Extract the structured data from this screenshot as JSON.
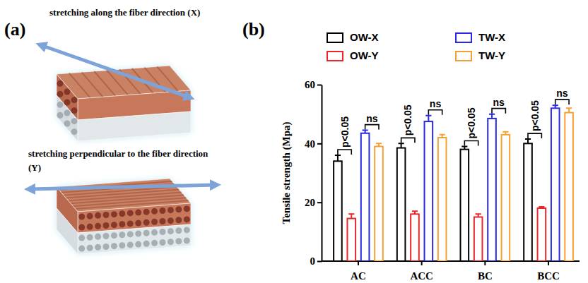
{
  "panel_labels": [
    "(a)",
    "(b)"
  ],
  "diagram": {
    "captions": [
      "stretching along the fiber direction (X)",
      "stretching perpendicular to the fiber direction (Y)"
    ]
  },
  "chart_data": {
    "type": "bar",
    "y_label": "Tensile strength (Mpa)",
    "categories": [
      "AC",
      "ACC",
      "BC",
      "BCC"
    ],
    "series": [
      {
        "name": "OW-X",
        "color": "#000000",
        "values": [
          34,
          38.5,
          38,
          40
        ],
        "errors": [
          2,
          1.5,
          1,
          1.5
        ]
      },
      {
        "name": "OW-Y",
        "color": "#e8262b",
        "values": [
          14.5,
          16,
          15,
          18
        ],
        "errors": [
          1.5,
          1,
          1,
          0.5
        ]
      },
      {
        "name": "TW-X",
        "color": "#2a2ae6",
        "values": [
          43.5,
          47.5,
          48.5,
          52
        ],
        "errors": [
          1,
          2,
          1.5,
          1
        ]
      },
      {
        "name": "TW-Y",
        "color": "#f5a030",
        "values": [
          39,
          42,
          43,
          50.5
        ],
        "errors": [
          1,
          1,
          1,
          1.5
        ]
      }
    ],
    "ylim": [
      0,
      60
    ],
    "yticks": [
      0,
      20,
      40,
      60
    ],
    "legend": "top",
    "annotations": [
      {
        "text": "p<0.05",
        "category": "AC",
        "series": [
          "OW-X",
          "OW-Y"
        ]
      },
      {
        "text": "ns",
        "category": "AC",
        "series": [
          "TW-X",
          "TW-Y"
        ]
      },
      {
        "text": "p<0.05",
        "category": "ACC",
        "series": [
          "OW-X",
          "OW-Y"
        ]
      },
      {
        "text": "ns",
        "category": "ACC",
        "series": [
          "TW-X",
          "TW-Y"
        ]
      },
      {
        "text": "p<0.05",
        "category": "BC",
        "series": [
          "OW-X",
          "OW-Y"
        ]
      },
      {
        "text": "ns",
        "category": "BC",
        "series": [
          "TW-X",
          "TW-Y"
        ]
      },
      {
        "text": "p<0.05",
        "category": "BCC",
        "series": [
          "OW-X",
          "OW-Y"
        ]
      },
      {
        "text": "ns",
        "category": "BCC",
        "series": [
          "TW-X",
          "TW-Y"
        ]
      }
    ]
  }
}
